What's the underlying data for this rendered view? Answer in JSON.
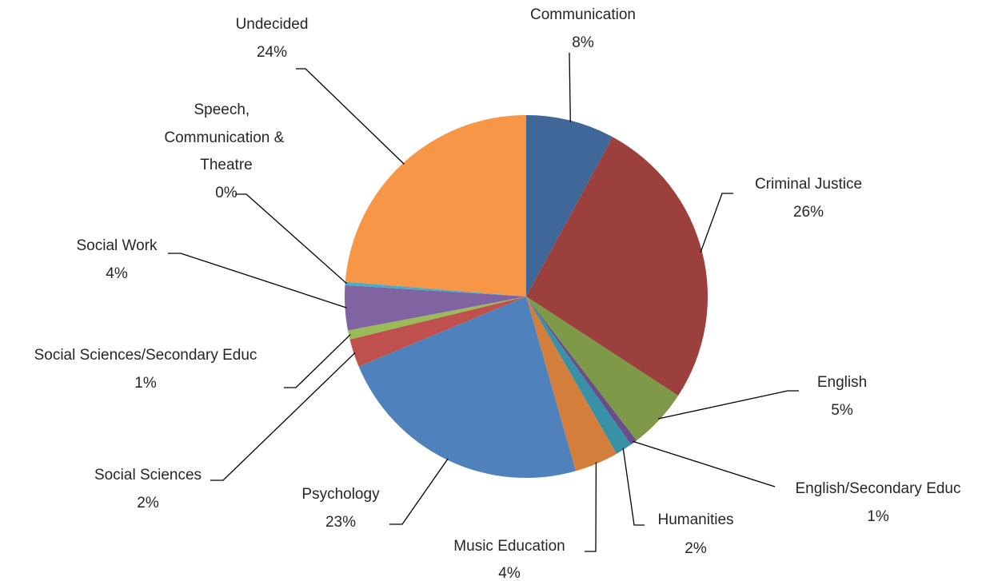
{
  "chart_data": {
    "type": "pie",
    "title": "",
    "slices": [
      {
        "name": "Communication",
        "label": "8%",
        "value": 7.9,
        "color": "#3F6899"
      },
      {
        "name": "Criminal Justice",
        "label": "26%",
        "value": 26.3,
        "color": "#9C403E"
      },
      {
        "name": "English",
        "label": "5%",
        "value": 5.4,
        "color": "#7E9A48"
      },
      {
        "name": "English/Secondary Educ",
        "label": "1%",
        "value": 0.6,
        "color": "#684F88"
      },
      {
        "name": "Humanities",
        "label": "2%",
        "value": 1.5,
        "color": "#3991A7"
      },
      {
        "name": "Music Education",
        "label": "4%",
        "value": 3.9,
        "color": "#D37E3B"
      },
      {
        "name": "Psychology",
        "label": "23%",
        "value": 23.1,
        "color": "#4F81BD"
      },
      {
        "name": "Social Sciences",
        "label": "2%",
        "value": 2.5,
        "color": "#C0504D"
      },
      {
        "name": "Social Sciences/Secondary Educ",
        "label": "1%",
        "value": 0.8,
        "color": "#9BBB59"
      },
      {
        "name": "Social Work",
        "label": "4%",
        "value": 4.0,
        "color": "#8064A2"
      },
      {
        "name": "Speech, Communication & Theatre",
        "label": "0%",
        "value": 0.3,
        "color": "#4BACC6"
      },
      {
        "name": "Undecided",
        "label": "24%",
        "value": 23.7,
        "color": "#F79646"
      }
    ]
  }
}
